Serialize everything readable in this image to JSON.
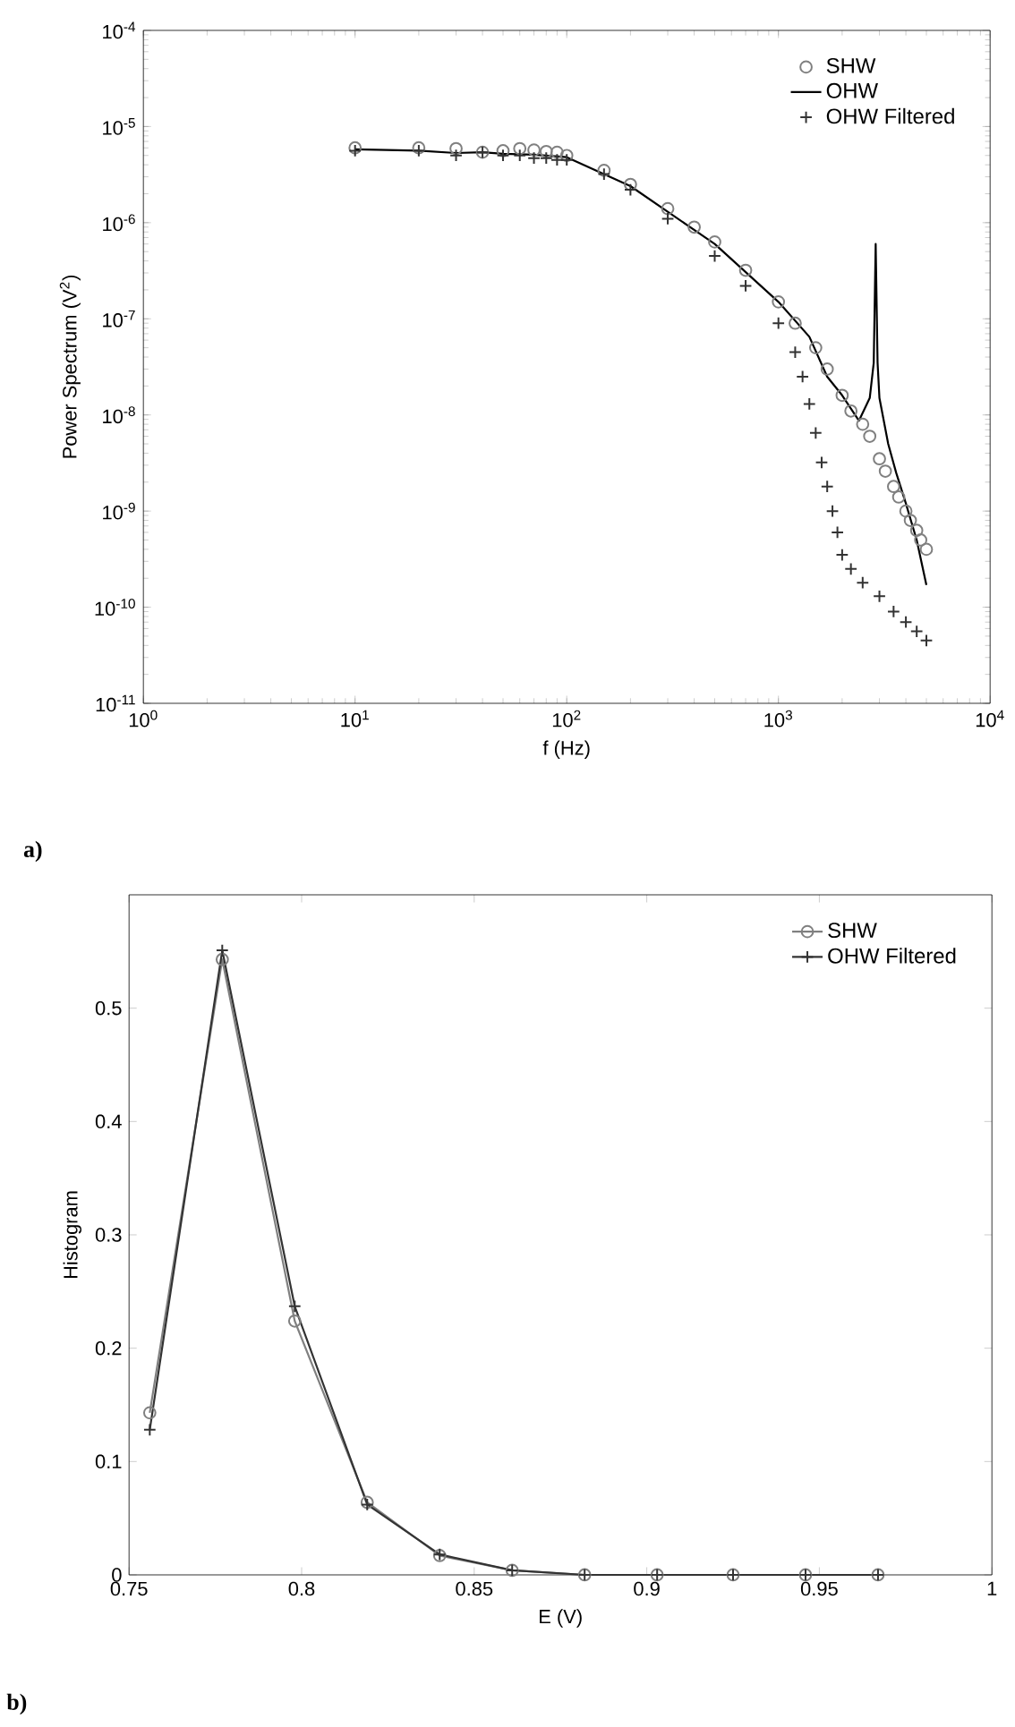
{
  "chart_data": [
    {
      "type": "line",
      "log": "xy",
      "xlabel": "f (Hz)",
      "ylabel": "Power Spectrum (V$^{2}$)",
      "legend": "top right",
      "grid": false,
      "xlim": [
        1,
        10000
      ],
      "ylim": [
        1e-11,
        0.0001
      ],
      "xticks": [
        {
          "value": 1,
          "label": "10$^{0}$"
        },
        {
          "value": 10,
          "label": "10$^{1}$"
        },
        {
          "value": 100,
          "label": "10$^{2}$"
        },
        {
          "value": 1000,
          "label": "10$^{3}$"
        },
        {
          "value": 10000,
          "label": "10$^{4}$"
        }
      ],
      "yticks": [
        {
          "value": 1e-11,
          "label": "10$^{-11}$"
        },
        {
          "value": 1e-10,
          "label": "10$^{-10}$"
        },
        {
          "value": 1e-09,
          "label": "10$^{-9}$"
        },
        {
          "value": 1e-08,
          "label": "10$^{-8}$"
        },
        {
          "value": 1e-07,
          "label": "10$^{-7}$"
        },
        {
          "value": 1e-06,
          "label": "10$^{-6}$"
        },
        {
          "value": 1e-05,
          "label": "10$^{-5}$"
        },
        {
          "value": 0.0001,
          "label": "10$^{-4}$"
        }
      ],
      "annotations": [
        "a)"
      ],
      "series": [
        {
          "name": "SHW",
          "type": "scatter",
          "marker": "circle",
          "color": "#808080",
          "x": [
            10,
            20,
            30,
            40,
            50,
            60,
            70,
            80,
            90,
            100,
            150,
            200,
            300,
            400,
            500,
            700,
            1000,
            1200,
            1500,
            1700,
            2000,
            2200,
            2500,
            2700,
            3000,
            3200,
            3500,
            3700,
            4000,
            4200,
            4500,
            4700,
            5000
          ],
          "values": [
            6e-06,
            6e-06,
            5.9e-06,
            5.4e-06,
            5.6e-06,
            5.9e-06,
            5.7e-06,
            5.5e-06,
            5.4e-06,
            5e-06,
            3.5e-06,
            2.5e-06,
            1.4e-06,
            9e-07,
            6.3e-07,
            3.2e-07,
            1.5e-07,
            9e-08,
            5e-08,
            3e-08,
            1.6e-08,
            1.1e-08,
            8e-09,
            6e-09,
            3.5e-09,
            2.6e-09,
            1.8e-09,
            1.4e-09,
            1e-09,
            8e-10,
            6.3e-10,
            5e-10,
            4e-10
          ]
        },
        {
          "name": "OHW",
          "marker": "none",
          "line_style": "solid",
          "color": "#000000",
          "x": [
            10,
            20,
            30,
            40,
            50,
            70,
            100,
            200,
            500,
            1000,
            1400,
            1700,
            2000,
            2400,
            2700,
            2820,
            2880,
            2940,
            3000,
            3300,
            3600,
            4000,
            4500,
            5000
          ],
          "values": [
            5.8e-06,
            5.6e-06,
            5.3e-06,
            5.4e-06,
            5.2e-06,
            5.1e-06,
            4.8e-06,
            2.4e-06,
            6e-07,
            1.5e-07,
            6.5e-08,
            2.5e-08,
            1.6e-08,
            8.7e-09,
            1.5e-08,
            3.5e-08,
            6e-07,
            3.5e-08,
            1.5e-08,
            5e-09,
            2.5e-09,
            1.2e-09,
            5e-10,
            1.7e-10
          ]
        },
        {
          "name": "OHW Filtered",
          "type": "scatter",
          "marker": "cross",
          "color": "#333333",
          "x": [
            10,
            20,
            30,
            40,
            50,
            60,
            70,
            80,
            90,
            100,
            150,
            200,
            300,
            500,
            700,
            1000,
            1200,
            1300,
            1400,
            1500,
            1600,
            1700,
            1800,
            1900,
            2000,
            2200,
            2500,
            3000,
            3500,
            4000,
            4500,
            5000
          ],
          "values": [
            5.6e-06,
            5.6e-06,
            5e-06,
            5.4e-06,
            5e-06,
            5e-06,
            4.7e-06,
            4.7e-06,
            4.5e-06,
            4.5e-06,
            3.2e-06,
            2.2e-06,
            1.1e-06,
            4.5e-07,
            2.2e-07,
            9e-08,
            4.5e-08,
            2.5e-08,
            1.3e-08,
            6.5e-09,
            3.2e-09,
            1.8e-09,
            1e-09,
            6e-10,
            3.5e-10,
            2.5e-10,
            1.8e-10,
            1.3e-10,
            9e-11,
            7e-11,
            5.6e-11,
            4.5e-11
          ]
        }
      ]
    },
    {
      "type": "line",
      "xlabel": "E (V)",
      "ylabel": "Histogram",
      "legend": "top right",
      "grid": false,
      "xlim": [
        0.75,
        1
      ],
      "ylim": [
        0,
        0.6
      ],
      "xticks": [
        0.75,
        0.8,
        0.85,
        0.9,
        0.95,
        1
      ],
      "yticks": [
        0,
        0.1,
        0.2,
        0.3,
        0.4,
        0.5
      ],
      "annotations": [
        "b)"
      ],
      "series": [
        {
          "name": "SHW",
          "marker": "circle",
          "line_style": "solid",
          "color": "#808080",
          "x": [
            0.756,
            0.777,
            0.798,
            0.819,
            0.84,
            0.861,
            0.882,
            0.903,
            0.925,
            0.946,
            0.967
          ],
          "values": [
            0.143,
            0.543,
            0.224,
            0.064,
            0.017,
            0.004,
            0,
            0,
            0,
            0,
            0
          ]
        },
        {
          "name": "OHW Filtered",
          "marker": "cross",
          "line_style": "solid",
          "color": "#333333",
          "x": [
            0.756,
            0.777,
            0.798,
            0.819,
            0.84,
            0.861,
            0.882,
            0.903,
            0.925,
            0.946,
            0.967
          ],
          "values": [
            0.128,
            0.551,
            0.237,
            0.062,
            0.018,
            0.004,
            0,
            0,
            0,
            0,
            0
          ]
        }
      ]
    }
  ]
}
